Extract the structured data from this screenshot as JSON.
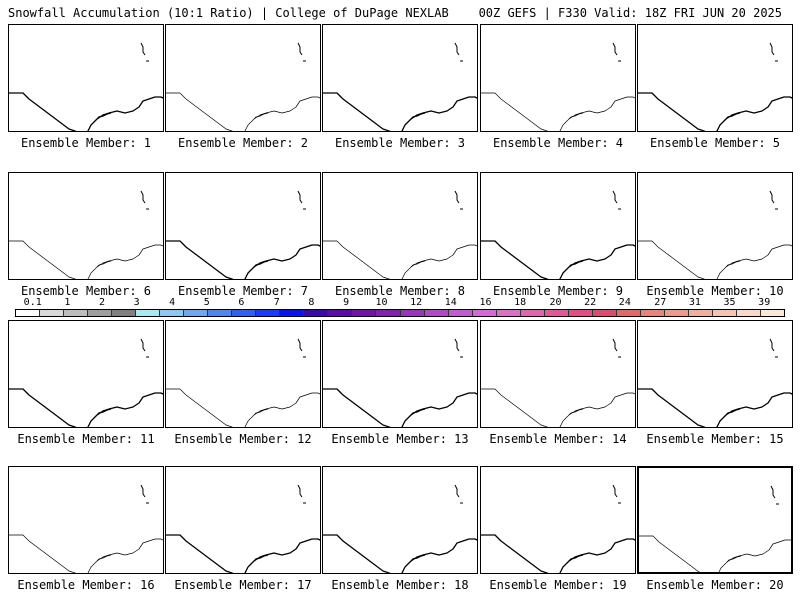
{
  "header": {
    "left": "Snowfall Accumulation (10:1 Ratio) | College of DuPage NEXLAB",
    "right": "00Z GEFS | F330 Valid: 18Z FRI JUN 20 2025"
  },
  "members": [
    {
      "label": "Ensemble Member: 1"
    },
    {
      "label": "Ensemble Member: 2"
    },
    {
      "label": "Ensemble Member: 3"
    },
    {
      "label": "Ensemble Member: 4"
    },
    {
      "label": "Ensemble Member: 5"
    },
    {
      "label": "Ensemble Member: 6"
    },
    {
      "label": "Ensemble Member: 7"
    },
    {
      "label": "Ensemble Member: 8"
    },
    {
      "label": "Ensemble Member: 9"
    },
    {
      "label": "Ensemble Member: 10"
    },
    {
      "label": "Ensemble Member: 11"
    },
    {
      "label": "Ensemble Member: 12"
    },
    {
      "label": "Ensemble Member: 13"
    },
    {
      "label": "Ensemble Member: 14"
    },
    {
      "label": "Ensemble Member: 15"
    },
    {
      "label": "Ensemble Member: 16"
    },
    {
      "label": "Ensemble Member: 17"
    },
    {
      "label": "Ensemble Member: 18"
    },
    {
      "label": "Ensemble Member: 19"
    },
    {
      "label": "Ensemble Member: 20"
    }
  ],
  "colorbar": {
    "ticks": [
      "0.1",
      "1",
      "2",
      "3",
      "4",
      "5",
      "6",
      "7",
      "8",
      "9",
      "10",
      "12",
      "14",
      "16",
      "18",
      "20",
      "22",
      "24",
      "27",
      "31",
      "35",
      "39"
    ],
    "colors": [
      "#ffffff",
      "#d9d9d9",
      "#bdbdbd",
      "#9e9e9e",
      "#808080",
      "#a8e8f0",
      "#8ec8ee",
      "#6ea8ee",
      "#4e86ee",
      "#3060f0",
      "#1a3cf4",
      "#0a14e8",
      "#3a0aa8",
      "#5a0ca8",
      "#7014a8",
      "#8420b0",
      "#9a34bc",
      "#b048c8",
      "#c25ad2",
      "#d46ad8",
      "#dc70c8",
      "#e064b0",
      "#e4589a",
      "#e04e84",
      "#dc4a72",
      "#e06a6a",
      "#e88478",
      "#ec9a8a",
      "#f0b09c",
      "#f4c4b0",
      "#f8d8c8",
      "#fbe8d8"
    ]
  }
}
